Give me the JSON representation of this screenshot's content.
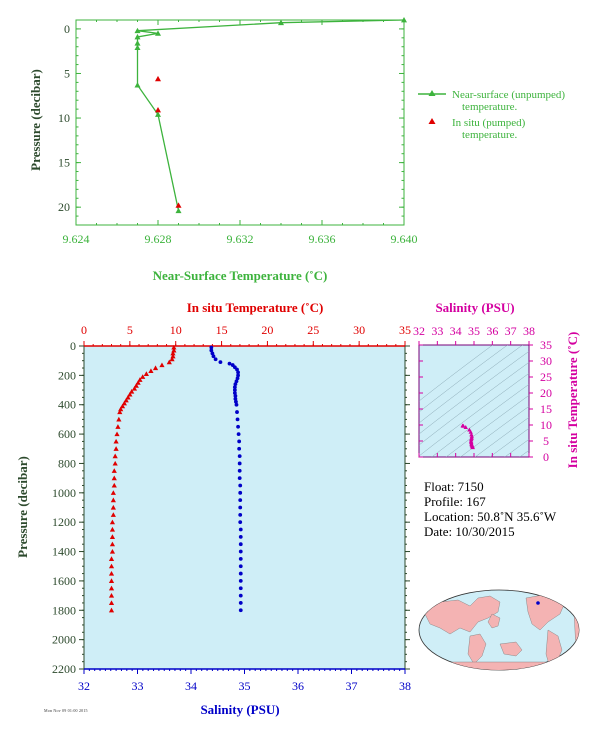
{
  "colors": {
    "green": "#3db33d",
    "red": "#e00000",
    "blue": "#0000c8",
    "magenta": "#d400a0",
    "axis_dark": "#2d4a2d",
    "panel_bg": "#cfeef7"
  },
  "chart_data": [
    {
      "type": "line",
      "id": "near-surface",
      "xlabel": "Near-Surface Temperature (˚C)",
      "ylabel": "Pressure (decibar)",
      "xlim": [
        9.624,
        9.64
      ],
      "ylim": [
        22,
        -1
      ],
      "xticks": [
        "9.624",
        "9.628",
        "9.632",
        "9.636",
        "9.640"
      ],
      "yticks": [
        "0",
        "5",
        "10",
        "15",
        "20"
      ],
      "series": [
        {
          "name": "Near-surface (unpumped) temperature.",
          "marker": "triangle",
          "points": [
            [
              9.64,
              -1.0
            ],
            [
              9.634,
              -0.7
            ],
            [
              9.627,
              0.2
            ],
            [
              9.628,
              0.5
            ],
            [
              9.627,
              0.9
            ],
            [
              9.627,
              1.6
            ],
            [
              9.627,
              2.1
            ],
            [
              9.627,
              6.3
            ],
            [
              9.628,
              9.6
            ],
            [
              9.629,
              20.4
            ]
          ]
        },
        {
          "name": "In situ (pumped) temperature.",
          "marker": "triangle-red",
          "points": [
            [
              9.628,
              5.6
            ],
            [
              9.628,
              9.1
            ],
            [
              9.629,
              19.8
            ]
          ]
        }
      ]
    },
    {
      "type": "scatter",
      "id": "profile",
      "x_top_label": "In situ Temperature (˚C)",
      "x_bottom_label": "Salinity (PSU)",
      "ylabel": "Pressure (decibar)",
      "temp_xlim": [
        0,
        35
      ],
      "sal_xlim": [
        32,
        38
      ],
      "ylim": [
        2200,
        0
      ],
      "temp_ticks": [
        "0",
        "5",
        "10",
        "15",
        "20",
        "25",
        "30",
        "35"
      ],
      "sal_ticks": [
        "32",
        "33",
        "34",
        "35",
        "36",
        "37",
        "38"
      ],
      "pressure_ticks": [
        "0",
        "200",
        "400",
        "600",
        "800",
        "1000",
        "1200",
        "1400",
        "1600",
        "1800",
        "2000",
        "2200"
      ],
      "temperature": [
        [
          9.8,
          10
        ],
        [
          9.8,
          30
        ],
        [
          9.7,
          50
        ],
        [
          9.7,
          70
        ],
        [
          9.6,
          90
        ],
        [
          9.3,
          110
        ],
        [
          8.5,
          130
        ],
        [
          7.8,
          150
        ],
        [
          7.3,
          170
        ],
        [
          6.8,
          190
        ],
        [
          6.4,
          210
        ],
        [
          6.1,
          230
        ],
        [
          5.9,
          250
        ],
        [
          5.7,
          270
        ],
        [
          5.5,
          290
        ],
        [
          5.2,
          310
        ],
        [
          5.0,
          330
        ],
        [
          4.8,
          350
        ],
        [
          4.6,
          370
        ],
        [
          4.4,
          390
        ],
        [
          4.2,
          410
        ],
        [
          4.0,
          430
        ],
        [
          3.9,
          450
        ],
        [
          3.8,
          500
        ],
        [
          3.7,
          550
        ],
        [
          3.6,
          600
        ],
        [
          3.5,
          650
        ],
        [
          3.5,
          700
        ],
        [
          3.4,
          750
        ],
        [
          3.4,
          800
        ],
        [
          3.3,
          850
        ],
        [
          3.3,
          900
        ],
        [
          3.3,
          950
        ],
        [
          3.2,
          1000
        ],
        [
          3.2,
          1050
        ],
        [
          3.2,
          1100
        ],
        [
          3.2,
          1150
        ],
        [
          3.1,
          1200
        ],
        [
          3.1,
          1250
        ],
        [
          3.1,
          1300
        ],
        [
          3.1,
          1350
        ],
        [
          3.1,
          1400
        ],
        [
          3.0,
          1450
        ],
        [
          3.0,
          1500
        ],
        [
          3.0,
          1550
        ],
        [
          3.0,
          1600
        ],
        [
          3.0,
          1650
        ],
        [
          3.0,
          1700
        ],
        [
          3.0,
          1750
        ],
        [
          3.0,
          1800
        ]
      ],
      "salinity": [
        [
          34.38,
          10
        ],
        [
          34.38,
          30
        ],
        [
          34.4,
          50
        ],
        [
          34.42,
          70
        ],
        [
          34.46,
          90
        ],
        [
          34.55,
          110
        ],
        [
          34.72,
          120
        ],
        [
          34.78,
          130
        ],
        [
          34.82,
          145
        ],
        [
          34.86,
          160
        ],
        [
          34.88,
          180
        ],
        [
          34.88,
          200
        ],
        [
          34.87,
          220
        ],
        [
          34.85,
          240
        ],
        [
          34.83,
          260
        ],
        [
          34.82,
          280
        ],
        [
          34.82,
          300
        ],
        [
          34.82,
          320
        ],
        [
          34.83,
          340
        ],
        [
          34.83,
          360
        ],
        [
          34.84,
          380
        ],
        [
          34.85,
          400
        ],
        [
          34.86,
          450
        ],
        [
          34.87,
          500
        ],
        [
          34.88,
          550
        ],
        [
          34.89,
          600
        ],
        [
          34.9,
          650
        ],
        [
          34.9,
          700
        ],
        [
          34.91,
          750
        ],
        [
          34.91,
          800
        ],
        [
          34.91,
          850
        ],
        [
          34.91,
          900
        ],
        [
          34.92,
          950
        ],
        [
          34.92,
          1000
        ],
        [
          34.92,
          1050
        ],
        [
          34.92,
          1100
        ],
        [
          34.92,
          1150
        ],
        [
          34.92,
          1200
        ],
        [
          34.93,
          1250
        ],
        [
          34.93,
          1300
        ],
        [
          34.93,
          1350
        ],
        [
          34.93,
          1400
        ],
        [
          34.93,
          1450
        ],
        [
          34.93,
          1500
        ],
        [
          34.93,
          1550
        ],
        [
          34.93,
          1600
        ],
        [
          34.93,
          1650
        ],
        [
          34.93,
          1700
        ],
        [
          34.93,
          1750
        ],
        [
          34.93,
          1800
        ]
      ]
    },
    {
      "type": "scatter",
      "id": "ts-diagram",
      "xlabel": "Salinity (PSU)",
      "ylabel": "In situ Temperature (˚C)",
      "xlim": [
        32,
        38
      ],
      "ylim": [
        0,
        35
      ],
      "xticks": [
        "32",
        "33",
        "34",
        "35",
        "36",
        "37",
        "38"
      ],
      "yticks": [
        "0",
        "5",
        "10",
        "15",
        "20",
        "25",
        "30",
        "35"
      ],
      "points": [
        [
          34.38,
          9.8
        ],
        [
          34.42,
          9.7
        ],
        [
          34.55,
          9.3
        ],
        [
          34.75,
          8.5
        ],
        [
          34.82,
          7.8
        ],
        [
          34.86,
          7.0
        ],
        [
          34.88,
          6.4
        ],
        [
          34.87,
          5.9
        ],
        [
          34.85,
          5.5
        ],
        [
          34.84,
          5.0
        ],
        [
          34.85,
          4.6
        ],
        [
          34.86,
          4.2
        ],
        [
          34.87,
          3.9
        ],
        [
          34.89,
          3.6
        ],
        [
          34.91,
          3.4
        ],
        [
          34.92,
          3.2
        ],
        [
          34.93,
          3.0
        ]
      ]
    }
  ],
  "info": {
    "float": "Float:  7150",
    "profile": "Profile:  167",
    "location": "Location:  50.8˚N  35.6˚W",
    "date": "Date:  10/30/2015"
  },
  "stamp": "Mon Nov 09 01:00 2015"
}
